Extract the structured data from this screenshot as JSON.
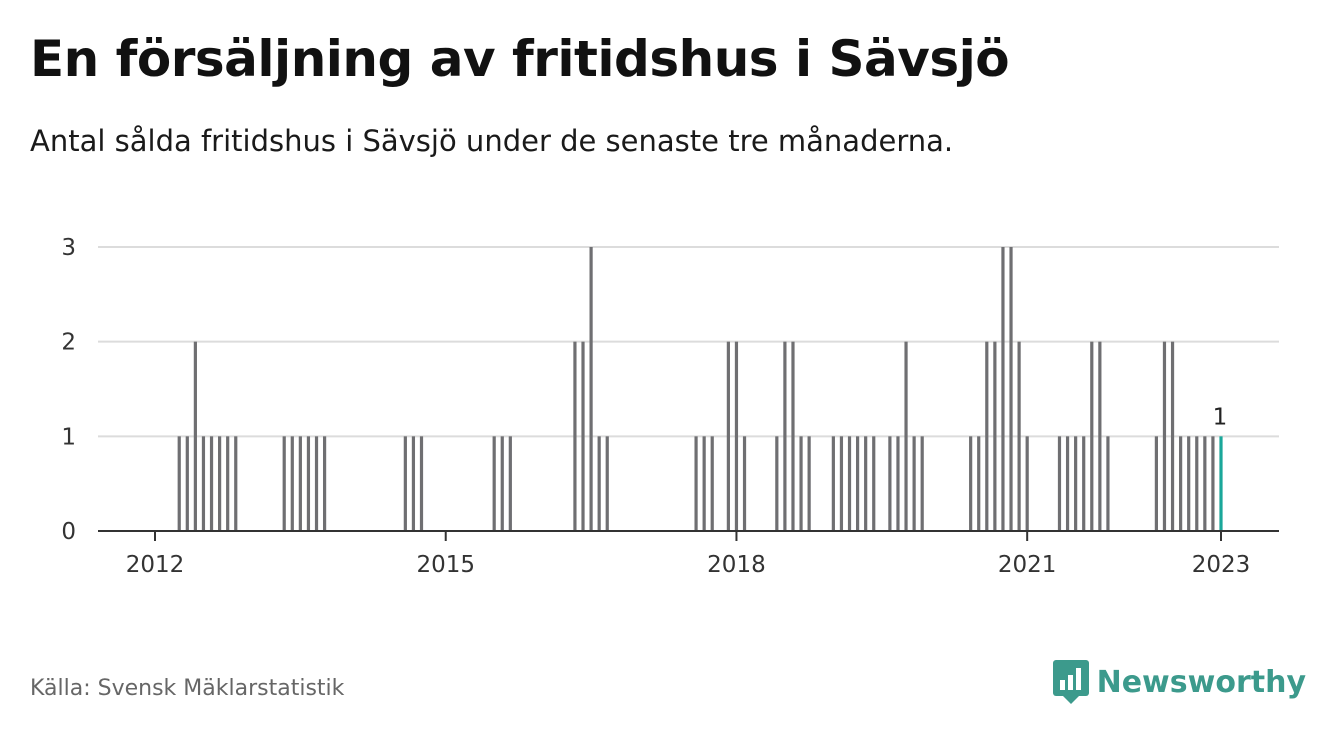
{
  "header": {
    "title": "En försäljning av fritidshus i Sävsjö",
    "subtitle": "Antal sålda fritidshus i Sävsjö under de senaste tre månaderna."
  },
  "footer": {
    "source": "Källa: Svensk Mäklarstatistik",
    "brand": "Newsworthy"
  },
  "colors": {
    "bar": "#6f6f72",
    "highlight": "#1aa79a",
    "grid": "#dcdcdc",
    "axis": "#333333",
    "brand": "#3c9a8c"
  },
  "chart_data": {
    "type": "bar",
    "title": "En försäljning av fritidshus i Sävsjö",
    "subtitle": "Antal sålda fritidshus i Sävsjö under de senaste tre månaderna.",
    "xlabel": "",
    "ylabel": "",
    "ylim": [
      0,
      3
    ],
    "yticks": [
      0,
      1,
      2,
      3
    ],
    "xticks": [
      "2012",
      "2015",
      "2018",
      "2021",
      "2023"
    ],
    "grid": true,
    "highlight_label": "1",
    "series": [
      {
        "values": [
          {
            "x": "2012-04",
            "y": 1
          },
          {
            "x": "2012-05",
            "y": 1
          },
          {
            "x": "2012-06",
            "y": 2
          },
          {
            "x": "2012-07",
            "y": 1
          },
          {
            "x": "2012-08",
            "y": 1
          },
          {
            "x": "2012-09",
            "y": 1
          },
          {
            "x": "2012-10",
            "y": 1
          },
          {
            "x": "2012-11",
            "y": 1
          },
          {
            "x": "2013-05",
            "y": 1
          },
          {
            "x": "2013-06",
            "y": 1
          },
          {
            "x": "2013-07",
            "y": 1
          },
          {
            "x": "2013-08",
            "y": 1
          },
          {
            "x": "2013-09",
            "y": 1
          },
          {
            "x": "2013-10",
            "y": 1
          },
          {
            "x": "2014-08",
            "y": 1
          },
          {
            "x": "2014-09",
            "y": 1
          },
          {
            "x": "2014-10",
            "y": 1
          },
          {
            "x": "2015-07",
            "y": 1
          },
          {
            "x": "2015-08",
            "y": 1
          },
          {
            "x": "2015-09",
            "y": 1
          },
          {
            "x": "2016-05",
            "y": 2
          },
          {
            "x": "2016-06",
            "y": 2
          },
          {
            "x": "2016-07",
            "y": 3
          },
          {
            "x": "2016-08",
            "y": 1
          },
          {
            "x": "2016-09",
            "y": 1
          },
          {
            "x": "2017-08",
            "y": 1
          },
          {
            "x": "2017-09",
            "y": 1
          },
          {
            "x": "2017-10",
            "y": 1
          },
          {
            "x": "2017-12",
            "y": 2
          },
          {
            "x": "2018-01",
            "y": 2
          },
          {
            "x": "2018-02",
            "y": 1
          },
          {
            "x": "2018-06",
            "y": 1
          },
          {
            "x": "2018-07",
            "y": 2
          },
          {
            "x": "2018-08",
            "y": 2
          },
          {
            "x": "2018-09",
            "y": 1
          },
          {
            "x": "2018-10",
            "y": 1
          },
          {
            "x": "2019-01",
            "y": 1
          },
          {
            "x": "2019-02",
            "y": 1
          },
          {
            "x": "2019-03",
            "y": 1
          },
          {
            "x": "2019-04",
            "y": 1
          },
          {
            "x": "2019-05",
            "y": 1
          },
          {
            "x": "2019-06",
            "y": 1
          },
          {
            "x": "2019-08",
            "y": 1
          },
          {
            "x": "2019-09",
            "y": 1
          },
          {
            "x": "2019-10",
            "y": 2
          },
          {
            "x": "2019-11",
            "y": 1
          },
          {
            "x": "2019-12",
            "y": 1
          },
          {
            "x": "2020-06",
            "y": 1
          },
          {
            "x": "2020-07",
            "y": 1
          },
          {
            "x": "2020-08",
            "y": 2
          },
          {
            "x": "2020-09",
            "y": 2
          },
          {
            "x": "2020-10",
            "y": 3
          },
          {
            "x": "2020-11",
            "y": 3
          },
          {
            "x": "2020-12",
            "y": 2
          },
          {
            "x": "2021-01",
            "y": 1
          },
          {
            "x": "2021-05",
            "y": 1
          },
          {
            "x": "2021-06",
            "y": 1
          },
          {
            "x": "2021-07",
            "y": 1
          },
          {
            "x": "2021-08",
            "y": 1
          },
          {
            "x": "2021-09",
            "y": 2
          },
          {
            "x": "2021-10",
            "y": 2
          },
          {
            "x": "2021-11",
            "y": 1
          },
          {
            "x": "2022-05",
            "y": 1
          },
          {
            "x": "2022-06",
            "y": 2
          },
          {
            "x": "2022-07",
            "y": 2
          },
          {
            "x": "2022-08",
            "y": 1
          },
          {
            "x": "2022-09",
            "y": 1
          },
          {
            "x": "2022-10",
            "y": 1
          },
          {
            "x": "2022-11",
            "y": 1
          },
          {
            "x": "2022-12",
            "y": 1
          },
          {
            "x": "2023-01",
            "y": 1,
            "highlight": true
          }
        ]
      }
    ]
  }
}
